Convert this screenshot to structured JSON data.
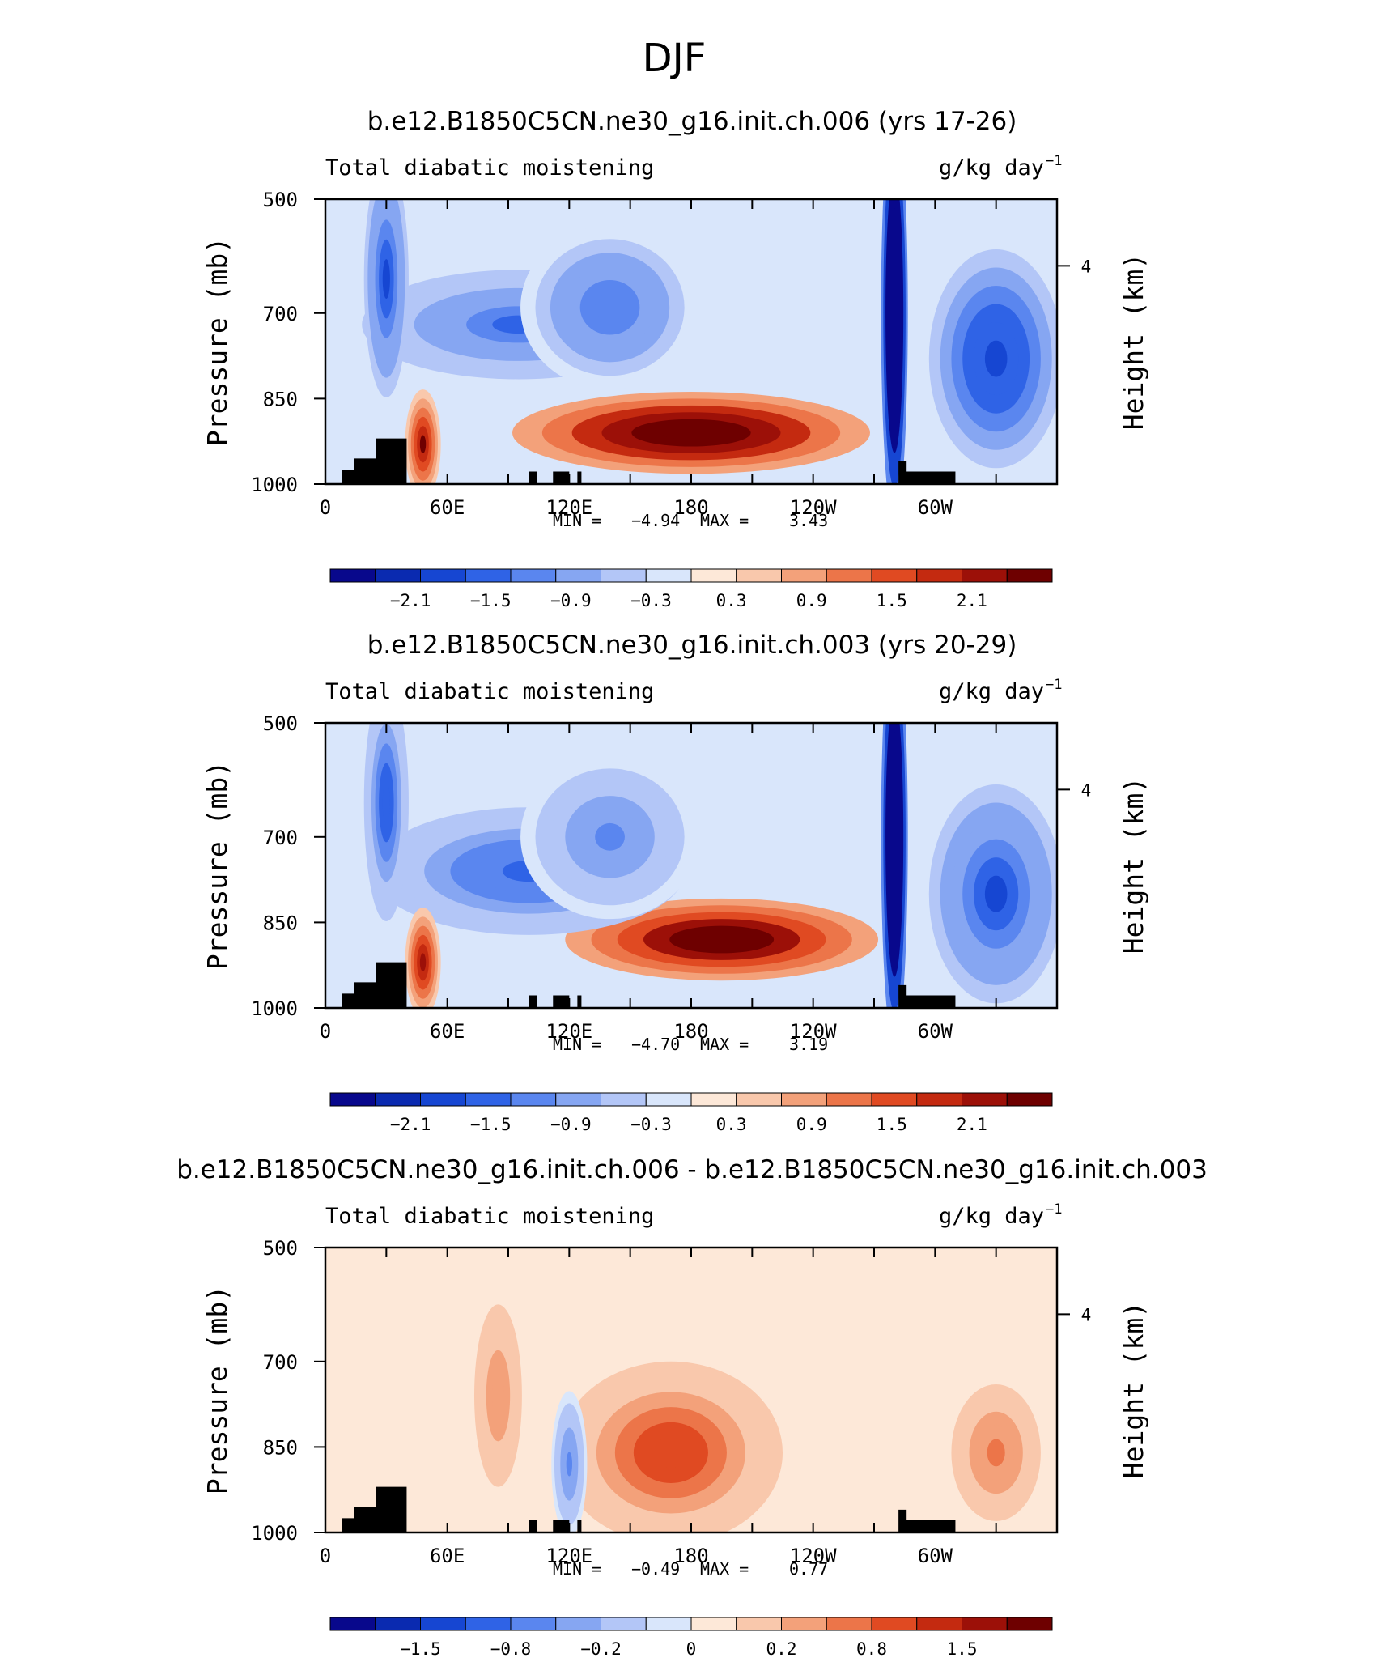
{
  "figure_title": "DJF",
  "colors": {
    "palette_div": [
      "#08088c",
      "#0a2ab0",
      "#1646d2",
      "#2f63e6",
      "#5a86ef",
      "#86a6f2",
      "#b3c6f7",
      "#d9e6fb",
      "#fde8d8",
      "#f9c8ac",
      "#f3a17a",
      "#ec7549",
      "#e04a22",
      "#c42a10",
      "#9c1008",
      "#6e0000"
    ],
    "terrain": "#000000"
  },
  "chart_data": [
    {
      "type": "heatmap",
      "title": "b.e12.B1850C5CN.ne30_g16.init.ch.006 (yrs 17-26)",
      "left_label": "Total diabatic moistening",
      "units": "g/kg day",
      "units_exp": "−1",
      "ylabel": "Pressure (mb)",
      "y2label": "Height (km)",
      "x_ticks": [
        "0",
        "60E",
        "120E",
        "180",
        "120W",
        "60W"
      ],
      "y_ticks": [
        "500",
        "700",
        "850",
        "1000"
      ],
      "y2_ticks": [
        "4"
      ],
      "xlim": [
        0,
        360
      ],
      "ylim": [
        1000,
        500
      ],
      "stats": {
        "min_label": "MIN =",
        "min": "−4.94",
        "max_label": "MAX =",
        "max": "3.43"
      },
      "colorbar_labels": [
        "−2.1",
        "−1.5",
        "−0.9",
        "−0.3",
        "0.3",
        "0.9",
        "1.5",
        "2.1"
      ],
      "features": [
        {
          "lon": 180,
          "p": 910,
          "value": 3.0,
          "dlon": 40,
          "dp": 45
        },
        {
          "lon": 95,
          "p": 720,
          "value": -1.3,
          "dlon": 35,
          "dp": 60
        },
        {
          "lon": 140,
          "p": 690,
          "value": -1.2,
          "dlon": 20,
          "dp": 90
        },
        {
          "lon": 280,
          "p": 700,
          "value": -4.6,
          "dlon": 3,
          "dp": 230
        },
        {
          "lon": 330,
          "p": 780,
          "value": -1.8,
          "dlon": 15,
          "dp": 120
        },
        {
          "lon": 30,
          "p": 640,
          "value": -1.6,
          "dlon": 5,
          "dp": 130
        },
        {
          "lon": 48,
          "p": 930,
          "value": 2.2,
          "dlon": 4,
          "dp": 60
        }
      ]
    },
    {
      "type": "heatmap",
      "title": "b.e12.B1850C5CN.ne30_g16.init.ch.003 (yrs 20-29)",
      "left_label": "Total diabatic moistening",
      "units": "g/kg day",
      "units_exp": "−1",
      "ylabel": "Pressure (mb)",
      "y2label": "Height (km)",
      "x_ticks": [
        "0",
        "60E",
        "120E",
        "180",
        "120W",
        "60W"
      ],
      "y_ticks": [
        "500",
        "700",
        "850",
        "1000"
      ],
      "y2_ticks": [
        "4"
      ],
      "xlim": [
        0,
        360
      ],
      "ylim": [
        1000,
        500
      ],
      "stats": {
        "min_label": "MIN =",
        "min": "−4.70",
        "max_label": "MAX =",
        "max": "3.19"
      },
      "colorbar_labels": [
        "−2.1",
        "−1.5",
        "−0.9",
        "−0.3",
        "0.3",
        "0.9",
        "1.5",
        "2.1"
      ],
      "features": [
        {
          "lon": 195,
          "p": 880,
          "value": 2.8,
          "dlon": 35,
          "dp": 45
        },
        {
          "lon": 100,
          "p": 760,
          "value": -1.4,
          "dlon": 35,
          "dp": 70
        },
        {
          "lon": 140,
          "p": 700,
          "value": -1.1,
          "dlon": 20,
          "dp": 90
        },
        {
          "lon": 280,
          "p": 700,
          "value": -4.4,
          "dlon": 3,
          "dp": 230
        },
        {
          "lon": 330,
          "p": 800,
          "value": -1.6,
          "dlon": 15,
          "dp": 120
        },
        {
          "lon": 30,
          "p": 640,
          "value": -1.5,
          "dlon": 5,
          "dp": 130
        },
        {
          "lon": 48,
          "p": 920,
          "value": 2.0,
          "dlon": 4,
          "dp": 60
        }
      ]
    },
    {
      "type": "heatmap",
      "title": "b.e12.B1850C5CN.ne30_g16.init.ch.006 - b.e12.B1850C5CN.ne30_g16.init.ch.003",
      "left_label": "Total diabatic moistening",
      "units": "g/kg day",
      "units_exp": "−1",
      "ylabel": "Pressure (mb)",
      "y2label": "Height (km)",
      "x_ticks": [
        "0",
        "60E",
        "120E",
        "180",
        "120W",
        "60W"
      ],
      "y_ticks": [
        "500",
        "700",
        "850",
        "1000"
      ],
      "y2_ticks": [
        "4"
      ],
      "xlim": [
        0,
        360
      ],
      "ylim": [
        1000,
        500
      ],
      "stats": {
        "min_label": "MIN =",
        "min": "−0.49",
        "max_label": "MAX =",
        "max": "0.77"
      },
      "colorbar_labels": [
        "−1.5",
        "−0.8",
        "−0.2",
        "0",
        "0.2",
        "0.8",
        "1.5"
      ],
      "features": [
        {
          "lon": 170,
          "p": 860,
          "value": 0.6,
          "dlon": 25,
          "dp": 100
        },
        {
          "lon": 120,
          "p": 880,
          "value": -0.4,
          "dlon": 4,
          "dp": 80
        },
        {
          "lon": 330,
          "p": 860,
          "value": 0.4,
          "dlon": 12,
          "dp": 90
        },
        {
          "lon": 85,
          "p": 760,
          "value": 0.3,
          "dlon": 8,
          "dp": 150
        }
      ]
    }
  ]
}
